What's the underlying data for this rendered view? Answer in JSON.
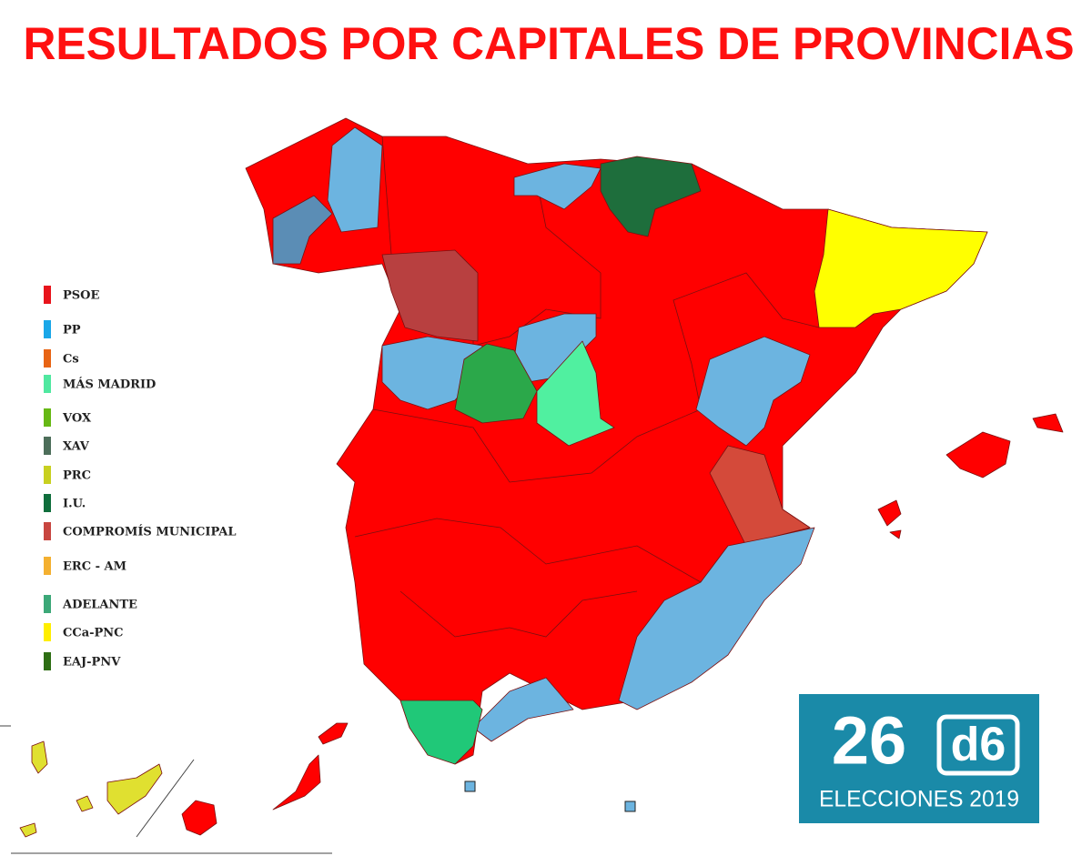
{
  "title": "RESULTADOS POR CAPITALES DE PROVINCIAS",
  "legend": [
    {
      "label": "PSOE",
      "color": "#e8141b"
    },
    {
      "label": "PP",
      "color": "#1aa7e8"
    },
    {
      "label": "Cs",
      "color": "#e86414"
    },
    {
      "label": "MÁS MADRID",
      "color": "#50e8a0"
    },
    {
      "label": "VOX",
      "color": "#66b814"
    },
    {
      "label": "XAV",
      "color": "#4d6e5a"
    },
    {
      "label": "PRC",
      "color": "#c8d020"
    },
    {
      "label": "I.U.",
      "color": "#0f6e3c"
    },
    {
      "label": "COMPROMÍS MUNICIPAL",
      "color": "#c84640"
    },
    {
      "label": "ERC - AM",
      "color": "#f4b030"
    },
    {
      "label": "ADELANTE",
      "color": "#3ca878"
    },
    {
      "label": "CCa-PNC",
      "color": "#ffee00"
    },
    {
      "label": "EAJ-PNV",
      "color": "#2e6e14"
    }
  ],
  "logo": {
    "number": "26",
    "mark": "d6",
    "caption": "ELECCIONES 2019"
  }
}
